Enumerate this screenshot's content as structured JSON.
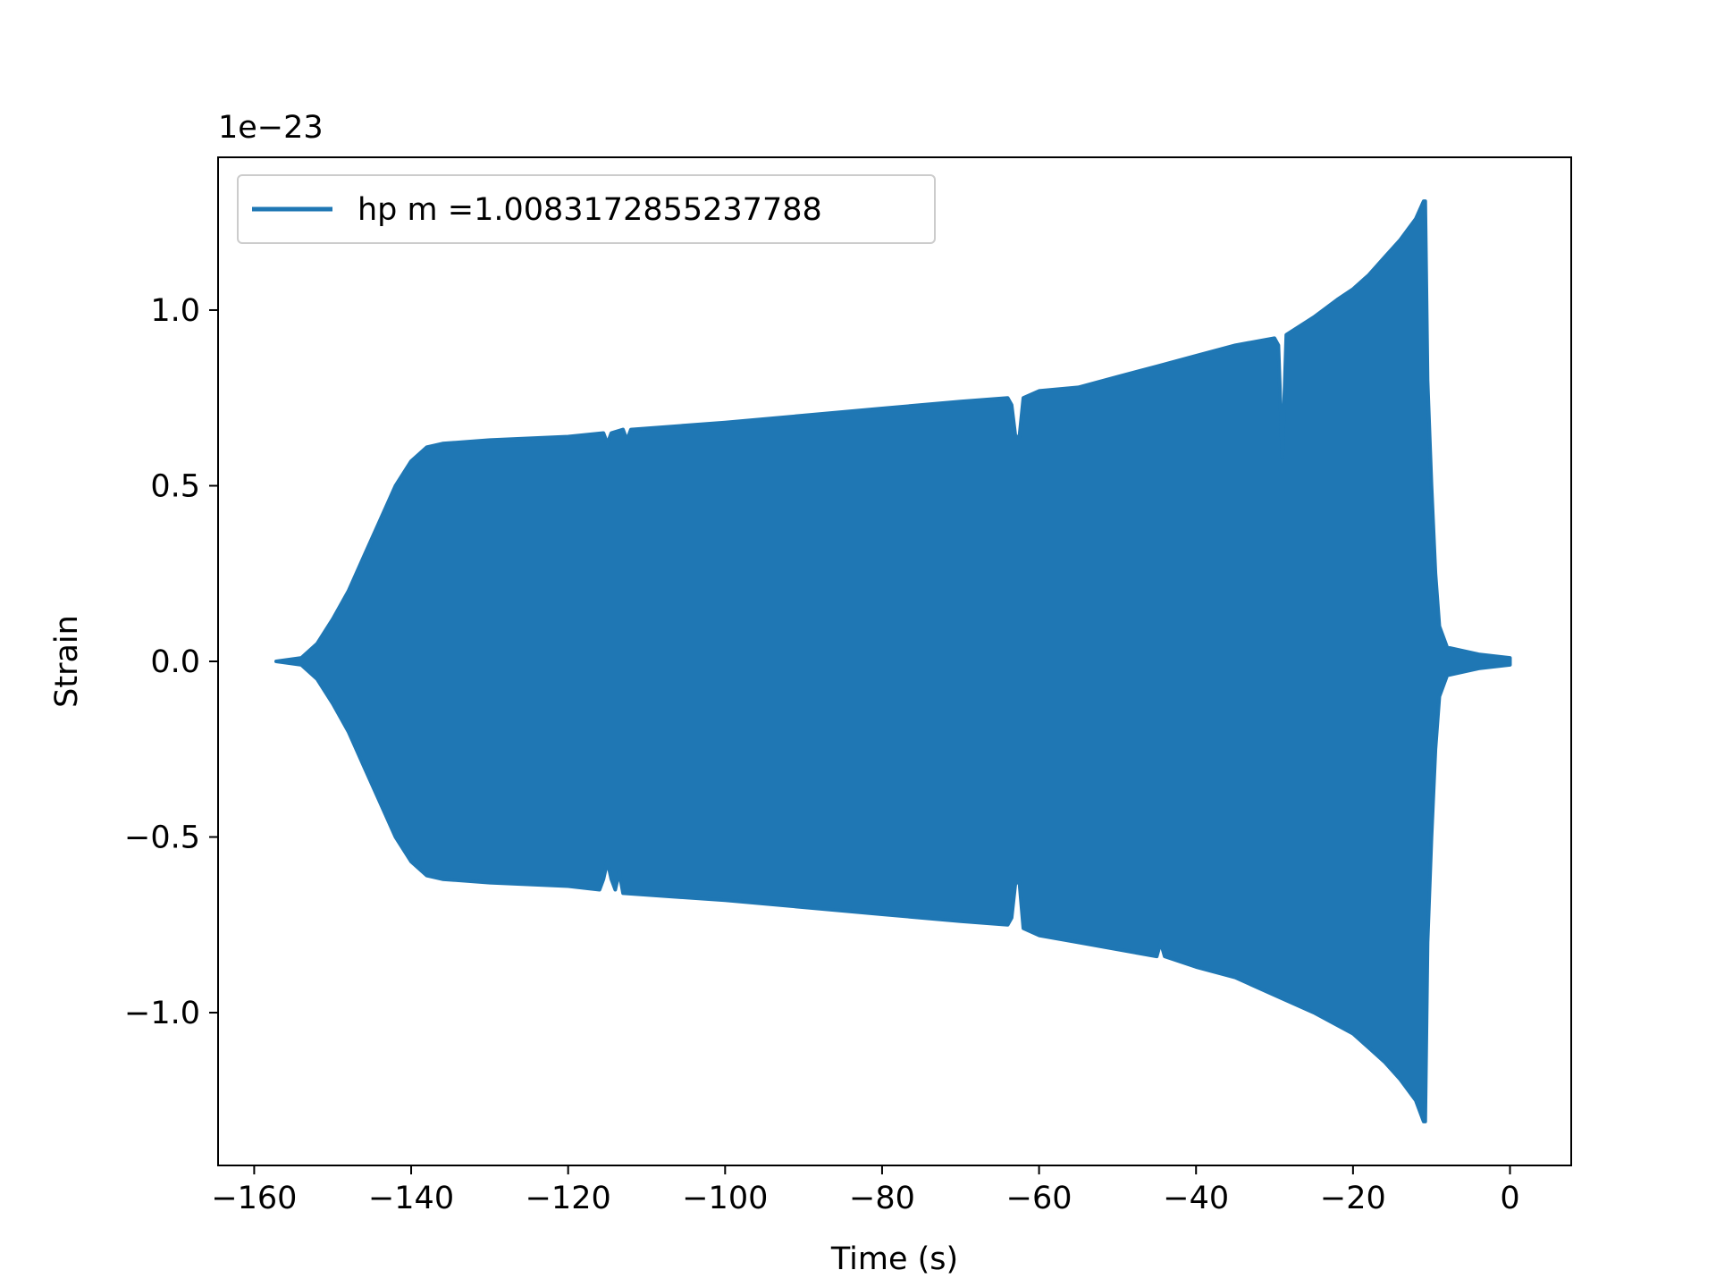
{
  "chart_data": {
    "type": "area",
    "title": "",
    "xlabel": "Time (s)",
    "ylabel": "Strain",
    "y_offset_label": "1e−23",
    "xlim": [
      -164.6,
      7.8
    ],
    "ylim": [
      -1.435,
      1.435
    ],
    "x_ticks": [
      -160,
      -140,
      -120,
      -100,
      -80,
      -60,
      -40,
      -20,
      0
    ],
    "x_tick_labels": [
      "−160",
      "−140",
      "−120",
      "−100",
      "−80",
      "−60",
      "−40",
      "−20",
      "0"
    ],
    "y_ticks": [
      -1.0,
      -0.5,
      0.0,
      0.5,
      1.0
    ],
    "y_tick_labels": [
      "−1.0",
      "−0.5",
      "0.0",
      "0.5",
      "1.0"
    ],
    "grid": false,
    "legend_position": "top-left",
    "series": [
      {
        "name": "hp m =1.0083172855237788",
        "color": "#1f77b4",
        "upper": [
          [
            -157.2,
            0.0
          ],
          [
            -154,
            0.01
          ],
          [
            -152,
            0.05
          ],
          [
            -150,
            0.12
          ],
          [
            -148,
            0.2
          ],
          [
            -146,
            0.3
          ],
          [
            -144,
            0.4
          ],
          [
            -142,
            0.5
          ],
          [
            -140,
            0.57
          ],
          [
            -138,
            0.61
          ],
          [
            -136,
            0.62
          ],
          [
            -130,
            0.63
          ],
          [
            -120,
            0.64
          ],
          [
            -115.5,
            0.65
          ],
          [
            -115,
            0.62
          ],
          [
            -114.5,
            0.65
          ],
          [
            -113,
            0.66
          ],
          [
            -112.5,
            0.63
          ],
          [
            -112,
            0.66
          ],
          [
            -100,
            0.68
          ],
          [
            -90,
            0.7
          ],
          [
            -80,
            0.72
          ],
          [
            -70,
            0.74
          ],
          [
            -64,
            0.75
          ],
          [
            -63.5,
            0.73
          ],
          [
            -63,
            0.64
          ],
          [
            -62.5,
            0.64
          ],
          [
            -62,
            0.75
          ],
          [
            -60,
            0.77
          ],
          [
            -55,
            0.78
          ],
          [
            -50,
            0.81
          ],
          [
            -45,
            0.84
          ],
          [
            -40,
            0.87
          ],
          [
            -35,
            0.9
          ],
          [
            -30,
            0.92
          ],
          [
            -29.5,
            0.9
          ],
          [
            -29,
            0.58
          ],
          [
            -28.5,
            0.93
          ],
          [
            -25,
            0.98
          ],
          [
            -22,
            1.03
          ],
          [
            -20,
            1.06
          ],
          [
            -18,
            1.1
          ],
          [
            -16,
            1.15
          ],
          [
            -14,
            1.2
          ],
          [
            -12,
            1.26
          ],
          [
            -11,
            1.31
          ],
          [
            -10.8,
            1.31
          ],
          [
            -10.5,
            0.8
          ],
          [
            -10,
            0.5
          ],
          [
            -9.5,
            0.25
          ],
          [
            -9,
            0.1
          ],
          [
            -8,
            0.04
          ],
          [
            -6,
            0.03
          ],
          [
            -4,
            0.02
          ],
          [
            -2,
            0.015
          ],
          [
            0,
            0.01
          ]
        ],
        "lower": [
          [
            -157.2,
            0.0
          ],
          [
            -154,
            -0.01
          ],
          [
            -152,
            -0.05
          ],
          [
            -150,
            -0.12
          ],
          [
            -148,
            -0.2
          ],
          [
            -146,
            -0.3
          ],
          [
            -144,
            -0.4
          ],
          [
            -142,
            -0.5
          ],
          [
            -140,
            -0.57
          ],
          [
            -138,
            -0.61
          ],
          [
            -136,
            -0.62
          ],
          [
            -130,
            -0.63
          ],
          [
            -120,
            -0.64
          ],
          [
            -116,
            -0.65
          ],
          [
            -115.5,
            -0.62
          ],
          [
            -115,
            -0.57
          ],
          [
            -114.5,
            -0.62
          ],
          [
            -114,
            -0.65
          ],
          [
            -113.5,
            -0.6
          ],
          [
            -113,
            -0.66
          ],
          [
            -100,
            -0.68
          ],
          [
            -90,
            -0.7
          ],
          [
            -80,
            -0.72
          ],
          [
            -70,
            -0.74
          ],
          [
            -64,
            -0.75
          ],
          [
            -63.5,
            -0.73
          ],
          [
            -63,
            -0.63
          ],
          [
            -62.5,
            -0.63
          ],
          [
            -62,
            -0.76
          ],
          [
            -60,
            -0.78
          ],
          [
            -55,
            -0.8
          ],
          [
            -50,
            -0.82
          ],
          [
            -45,
            -0.84
          ],
          [
            -44.5,
            -0.8
          ],
          [
            -44,
            -0.84
          ],
          [
            -40,
            -0.87
          ],
          [
            -35,
            -0.9
          ],
          [
            -30,
            -0.95
          ],
          [
            -25,
            -1.0
          ],
          [
            -20,
            -1.06
          ],
          [
            -18,
            -1.1
          ],
          [
            -16,
            -1.14
          ],
          [
            -14,
            -1.19
          ],
          [
            -12,
            -1.25
          ],
          [
            -11,
            -1.31
          ],
          [
            -10.8,
            -1.31
          ],
          [
            -10.5,
            -0.8
          ],
          [
            -10,
            -0.5
          ],
          [
            -9.5,
            -0.25
          ],
          [
            -9,
            -0.1
          ],
          [
            -8,
            -0.04
          ],
          [
            -6,
            -0.03
          ],
          [
            -4,
            -0.02
          ],
          [
            -2,
            -0.015
          ],
          [
            0,
            -0.01
          ]
        ]
      }
    ]
  }
}
